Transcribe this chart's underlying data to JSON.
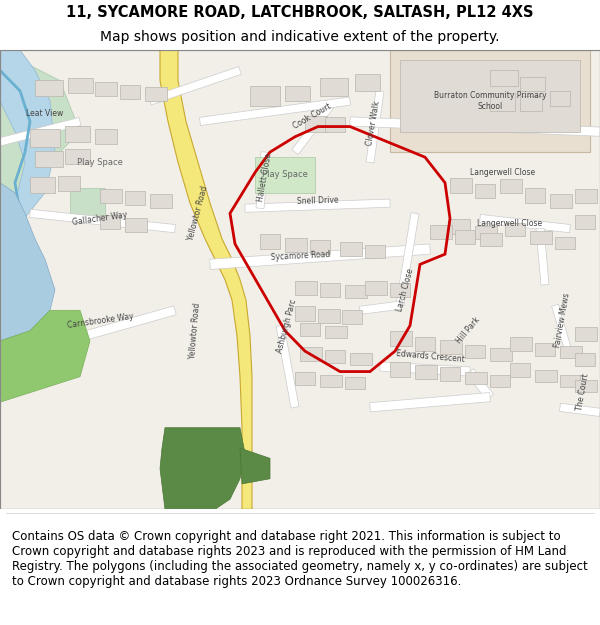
{
  "title_line1": "11, SYCAMORE ROAD, LATCHBROOK, SALTASH, PL12 4XS",
  "title_line2": "Map shows position and indicative extent of the property.",
  "footer": "Contains OS data © Crown copyright and database right 2021. This information is subject to Crown copyright and database rights 2023 and is reproduced with the permission of HM Land Registry. The polygons (including the associated geometry, namely x, y co-ordinates) are subject to Crown copyright and database rights 2023 Ordnance Survey 100026316.",
  "title_fontsize": 10.5,
  "subtitle_fontsize": 10,
  "footer_fontsize": 8.5,
  "map_bg": "#f5f5f0",
  "road_color": "#ffffff",
  "road_outline": "#cccccc",
  "building_fill": "#e8e8e8",
  "building_outline": "#cccccc",
  "green_fill": "#8db87a",
  "water_fill": "#aad3df",
  "yellow_road": "#f7e9a0",
  "yellow_road_outline": "#d4b84a",
  "red_polygon": "#cc0000",
  "header_bg": "#ffffff",
  "footer_bg": "#ffffff",
  "map_border": "#cccccc"
}
